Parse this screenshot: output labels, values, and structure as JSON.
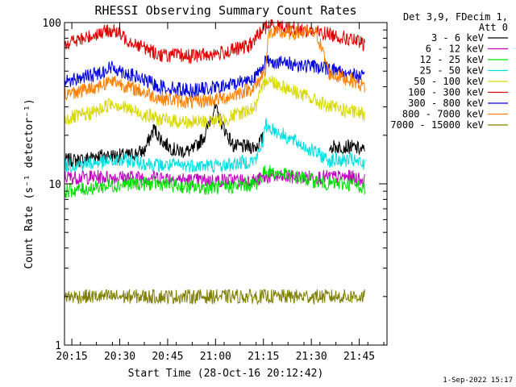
{
  "chart_data": {
    "type": "line",
    "title": "RHESSI Observing Summary Count Rates",
    "xlabel": "Start Time (28-Oct-16 20:12:42)",
    "ylabel": "Count Rate (s⁻¹ detector⁻¹)",
    "yscale": "log",
    "ylim": [
      1,
      100
    ],
    "xlim_minutes": [
      0,
      101
    ],
    "x_ticks": [
      {
        "m": 2.3,
        "label": "20:15"
      },
      {
        "m": 17.3,
        "label": "20:30"
      },
      {
        "m": 32.3,
        "label": "20:45"
      },
      {
        "m": 47.3,
        "label": "21:00"
      },
      {
        "m": 62.3,
        "label": "21:15"
      },
      {
        "m": 77.3,
        "label": "21:30"
      },
      {
        "m": 92.3,
        "label": "21:45"
      }
    ],
    "y_ticks": [
      {
        "v": 1,
        "label": "1"
      },
      {
        "v": 10,
        "label": "10"
      },
      {
        "v": 100,
        "label": "100"
      }
    ],
    "legend_header": [
      "Det 3,9, FDecim 1,",
      "Att 0"
    ],
    "legend_position": "right",
    "series": [
      {
        "name": "3 - 6 keV",
        "color": "#000000",
        "points": [
          [
            0,
            14
          ],
          [
            5,
            14
          ],
          [
            10,
            15
          ],
          [
            15,
            15
          ],
          [
            20,
            15
          ],
          [
            25,
            16
          ],
          [
            28,
            22
          ],
          [
            31,
            18
          ],
          [
            35,
            16
          ],
          [
            40,
            16
          ],
          [
            44,
            20
          ],
          [
            47,
            30
          ],
          [
            50,
            22
          ],
          [
            53,
            17
          ],
          [
            56,
            17
          ],
          [
            60,
            17
          ],
          [
            62,
            19
          ],
          [
            76,
            0
          ],
          [
            80,
            0
          ],
          [
            83,
            17
          ],
          [
            86,
            17
          ],
          [
            90,
            17
          ],
          [
            94,
            16
          ]
        ]
      },
      {
        "name": "6 - 12 keV",
        "color": "#c000c0",
        "points": [
          [
            0,
            11
          ],
          [
            10,
            11
          ],
          [
            20,
            11
          ],
          [
            30,
            11
          ],
          [
            40,
            10.5
          ],
          [
            50,
            10.5
          ],
          [
            60,
            10.5
          ],
          [
            63,
            11
          ],
          [
            83,
            11
          ],
          [
            90,
            11
          ],
          [
            94,
            10.5
          ]
        ]
      },
      {
        "name": "12 - 25 keV",
        "color": "#00e000",
        "points": [
          [
            0,
            9
          ],
          [
            10,
            9.5
          ],
          [
            20,
            10
          ],
          [
            30,
            10
          ],
          [
            40,
            9.5
          ],
          [
            50,
            9.5
          ],
          [
            60,
            10
          ],
          [
            63,
            12
          ],
          [
            83,
            10
          ],
          [
            90,
            10
          ],
          [
            94,
            9.5
          ]
        ]
      },
      {
        "name": "25 - 50 keV",
        "color": "#00e0e0",
        "points": [
          [
            0,
            13
          ],
          [
            10,
            13.5
          ],
          [
            20,
            14
          ],
          [
            30,
            13
          ],
          [
            40,
            13
          ],
          [
            50,
            13
          ],
          [
            60,
            14
          ],
          [
            62,
            18
          ],
          [
            63,
            23
          ],
          [
            83,
            14
          ],
          [
            90,
            14
          ],
          [
            94,
            13
          ]
        ]
      },
      {
        "name": "50 - 100 keV",
        "color": "#d8d800",
        "points": [
          [
            0,
            25
          ],
          [
            10,
            28
          ],
          [
            15,
            32
          ],
          [
            20,
            29
          ],
          [
            30,
            25
          ],
          [
            40,
            24
          ],
          [
            50,
            25
          ],
          [
            60,
            30
          ],
          [
            63,
            45
          ],
          [
            83,
            30
          ],
          [
            90,
            28
          ],
          [
            94,
            27
          ]
        ]
      },
      {
        "name": "100 - 300 keV",
        "color": "#e00000",
        "points": [
          [
            0,
            75
          ],
          [
            5,
            78
          ],
          [
            10,
            85
          ],
          [
            15,
            90
          ],
          [
            20,
            78
          ],
          [
            25,
            70
          ],
          [
            30,
            63
          ],
          [
            40,
            62
          ],
          [
            50,
            65
          ],
          [
            58,
            72
          ],
          [
            62,
            90
          ],
          [
            64,
            97
          ],
          [
            83,
            85
          ],
          [
            90,
            78
          ],
          [
            94,
            73
          ]
        ]
      },
      {
        "name": "300 - 800 keV",
        "color": "#0000e0",
        "points": [
          [
            0,
            43
          ],
          [
            10,
            48
          ],
          [
            15,
            53
          ],
          [
            20,
            48
          ],
          [
            30,
            40
          ],
          [
            40,
            38
          ],
          [
            50,
            40
          ],
          [
            60,
            46
          ],
          [
            63,
            58
          ],
          [
            83,
            52
          ],
          [
            90,
            48
          ],
          [
            94,
            45
          ]
        ]
      },
      {
        "name": "800 - 7000 keV",
        "color": "#ff8000",
        "points": [
          [
            0,
            36
          ],
          [
            10,
            40
          ],
          [
            15,
            44
          ],
          [
            20,
            40
          ],
          [
            30,
            34
          ],
          [
            40,
            32
          ],
          [
            50,
            34
          ],
          [
            60,
            40
          ],
          [
            63,
            52
          ],
          [
            64,
            86
          ],
          [
            79,
            86
          ],
          [
            83,
            48
          ],
          [
            90,
            44
          ],
          [
            94,
            40
          ]
        ]
      },
      {
        "name": "7000 - 15000 keV",
        "color": "#808000",
        "points": [
          [
            0,
            2
          ],
          [
            10,
            2
          ],
          [
            20,
            2
          ],
          [
            30,
            2
          ],
          [
            40,
            2
          ],
          [
            50,
            2
          ],
          [
            60,
            2
          ],
          [
            62,
            2
          ],
          [
            83,
            2
          ],
          [
            90,
            2
          ],
          [
            94,
            2
          ]
        ]
      }
    ],
    "annotation_date": "1-Sep-2022 15:17"
  }
}
